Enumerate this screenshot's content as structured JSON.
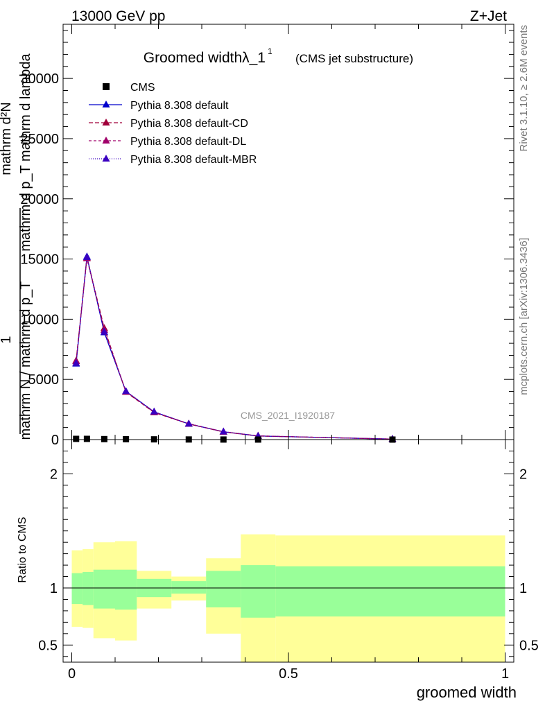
{
  "header": {
    "left": "13000 GeV pp",
    "right": "Z+Jet"
  },
  "side": {
    "rivet": "Rivet 3.1.10, ≥ 2.6M events",
    "mcplots": "mcplots.cern.ch [arXiv:1306.3436]"
  },
  "chart_data": [
    {
      "type": "line",
      "title": "Groomed widthλ_1",
      "title_sup": "1",
      "subtitle": "(CMS jet substructure)",
      "watermark": "CMS_2021_I1920187",
      "ylabel_num": "mathrm d²N",
      "ylabel_den": "mathrm d p_T mathrm d lambda",
      "ylabel_pre_num": "1",
      "ylabel_pre_den": "mathrm N / mathrm d p_T",
      "xlim": [
        -0.02,
        1.02
      ],
      "ylim": [
        0,
        34500
      ],
      "yticks": [
        0,
        5000,
        10000,
        15000,
        20000,
        25000,
        30000
      ],
      "yticklabels": [
        "0",
        "5000",
        "10000",
        "15000",
        "20000",
        "25000",
        "30000"
      ],
      "legend": {
        "position": "top-left",
        "entries": [
          "CMS",
          "Pythia 8.308 default",
          "Pythia 8.308 default-CD",
          "Pythia 8.308 default-DL",
          "Pythia 8.308 default-MBR"
        ]
      },
      "cms": {
        "name": "CMS",
        "x": [
          0.01,
          0.035,
          0.075,
          0.125,
          0.19,
          0.27,
          0.35,
          0.43,
          0.74
        ],
        "y": [
          60,
          60,
          40,
          30,
          20,
          10,
          5,
          3,
          1
        ]
      },
      "series": [
        {
          "name": "Pythia 8.308 default",
          "color": "#0000cc",
          "dash": "",
          "x": [
            0.01,
            0.035,
            0.075,
            0.125,
            0.19,
            0.27,
            0.35,
            0.43,
            0.74
          ],
          "y": [
            6300,
            15200,
            8900,
            4000,
            2300,
            1300,
            650,
            300,
            40
          ]
        },
        {
          "name": "Pythia 8.308 default-CD",
          "color": "#a0003a",
          "dash": "6,3",
          "x": [
            0.01,
            0.035,
            0.075,
            0.125,
            0.19,
            0.27,
            0.35,
            0.43,
            0.74
          ],
          "y": [
            6550,
            15100,
            9250,
            3950,
            2250,
            1300,
            640,
            300,
            40
          ]
        },
        {
          "name": "Pythia 8.308 default-DL",
          "color": "#a0006a",
          "dash": "4,3",
          "x": [
            0.01,
            0.035,
            0.075,
            0.125,
            0.19,
            0.27,
            0.35,
            0.43,
            0.74
          ],
          "y": [
            6500,
            15050,
            9100,
            3980,
            2280,
            1320,
            650,
            310,
            40
          ]
        },
        {
          "name": "Pythia 8.308 default-MBR",
          "color": "#3a00c0",
          "dash": "1,2",
          "x": [
            0.01,
            0.035,
            0.075,
            0.125,
            0.19,
            0.27,
            0.35,
            0.43,
            0.74
          ],
          "y": [
            6350,
            15150,
            8950,
            4020,
            2320,
            1310,
            660,
            300,
            40
          ]
        }
      ]
    },
    {
      "type": "area",
      "ylabel": "Ratio to CMS",
      "xlabel": "groomed width",
      "xlim": [
        -0.02,
        1.02
      ],
      "ylim": [
        0.35,
        2.3
      ],
      "yticks": [
        0.5,
        1,
        2
      ],
      "yticklabels": [
        "0.5",
        "1",
        "2"
      ],
      "xticks": [
        0,
        0.5,
        1
      ],
      "xticklabels": [
        "0",
        "0.5",
        "1"
      ],
      "bands": {
        "edges": [
          0,
          0.025,
          0.05,
          0.1,
          0.15,
          0.23,
          0.31,
          0.39,
          0.47,
          1.0
        ],
        "green_lo": [
          0.86,
          0.85,
          0.82,
          0.81,
          0.92,
          0.95,
          0.83,
          0.74,
          0.75
        ],
        "green_hi": [
          1.13,
          1.14,
          1.16,
          1.16,
          1.08,
          1.06,
          1.15,
          1.2,
          1.19
        ],
        "yellow_lo": [
          0.66,
          0.65,
          0.56,
          0.54,
          0.82,
          0.89,
          0.6,
          0.2,
          0.2
        ],
        "yellow_hi": [
          1.33,
          1.34,
          1.4,
          1.41,
          1.15,
          1.1,
          1.26,
          1.47,
          1.46
        ]
      },
      "reference": 1
    }
  ]
}
